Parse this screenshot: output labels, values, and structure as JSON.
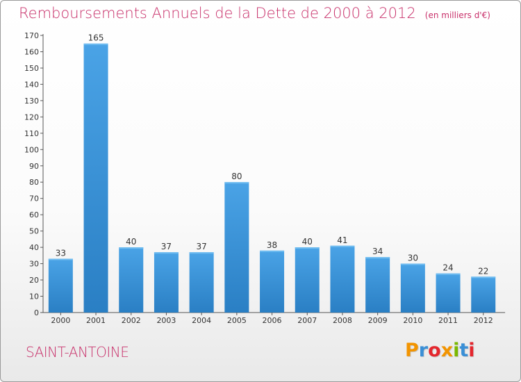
{
  "header": {
    "title": "Remboursements Annuels de la Dette de 2000 à 2012",
    "subtitle": "(en milliers d'€)"
  },
  "footer": {
    "commune": "SAINT-ANTOINE",
    "brand": "Proxiti",
    "brand_letter_colors": [
      "#f29400",
      "#3a8fd6",
      "#e4262d",
      "#f29400",
      "#7ab800",
      "#3a8fd6",
      "#e4262d"
    ]
  },
  "chart_data": {
    "type": "bar",
    "title": "Remboursements Annuels de la Dette de 2000 à 2012",
    "subtitle": "(en milliers d'€)",
    "categories": [
      "2000",
      "2001",
      "2002",
      "2003",
      "2004",
      "2005",
      "2006",
      "2007",
      "2008",
      "2009",
      "2010",
      "2011",
      "2012"
    ],
    "values": [
      33,
      165,
      40,
      37,
      37,
      80,
      38,
      40,
      41,
      34,
      30,
      24,
      22
    ],
    "ylim": [
      0,
      170
    ],
    "yticks": [
      0,
      10,
      20,
      30,
      40,
      50,
      60,
      70,
      80,
      90,
      100,
      110,
      120,
      130,
      140,
      150,
      160,
      170
    ],
    "grid": false,
    "bar_color": "#4aa3e6",
    "bar_color_dark": "#2a7fc4"
  }
}
